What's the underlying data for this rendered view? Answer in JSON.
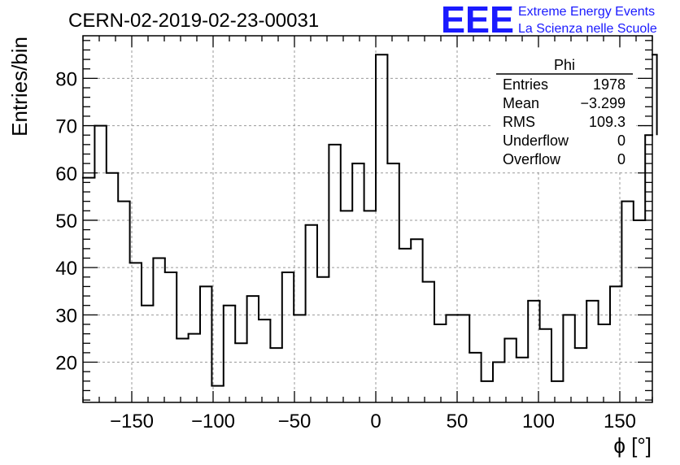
{
  "chart_data": {
    "type": "bar",
    "title": "CERN-02-2019-02-23-00031",
    "xlabel": "ϕ [°]",
    "ylabel": "Entries/bin",
    "xlim": [
      -180,
      170
    ],
    "ylim": [
      11.5,
      89
    ],
    "grid": true,
    "bin_width": 7.2,
    "x_start": -180,
    "values": [
      59,
      70,
      60,
      54,
      41,
      32,
      42,
      39,
      25,
      26,
      36,
      15,
      32,
      24,
      34,
      29,
      23,
      39,
      30,
      49,
      38,
      66,
      52,
      62,
      52,
      85,
      62,
      44,
      46,
      37,
      28,
      30,
      30,
      22,
      16,
      20,
      25,
      21,
      33,
      27,
      16,
      30,
      23,
      33,
      28,
      36,
      54,
      50,
      68,
      85
    ],
    "x_ticks": [
      -150,
      -100,
      -50,
      0,
      50,
      100,
      150
    ],
    "x_tick_labels": [
      "−150",
      "−100",
      "−50",
      "0",
      "50",
      "100",
      "150"
    ],
    "y_ticks": [
      20,
      30,
      40,
      50,
      60,
      70,
      80
    ],
    "y_tick_labels": [
      "20",
      "30",
      "40",
      "50",
      "60",
      "70",
      "80"
    ],
    "stats": {
      "name": "Phi",
      "rows": [
        {
          "label": "Entries",
          "value": "1978"
        },
        {
          "label": "Mean",
          "value": "−3.299"
        },
        {
          "label": "RMS",
          "value": "109.3"
        },
        {
          "label": "Underflow",
          "value": "0"
        },
        {
          "label": "Overflow",
          "value": "0"
        }
      ]
    },
    "logo": {
      "mark": "EEE",
      "line1": "Extreme Energy Events",
      "line2": "La Scienza nelle Scuole",
      "color": "#1a1aff"
    }
  }
}
